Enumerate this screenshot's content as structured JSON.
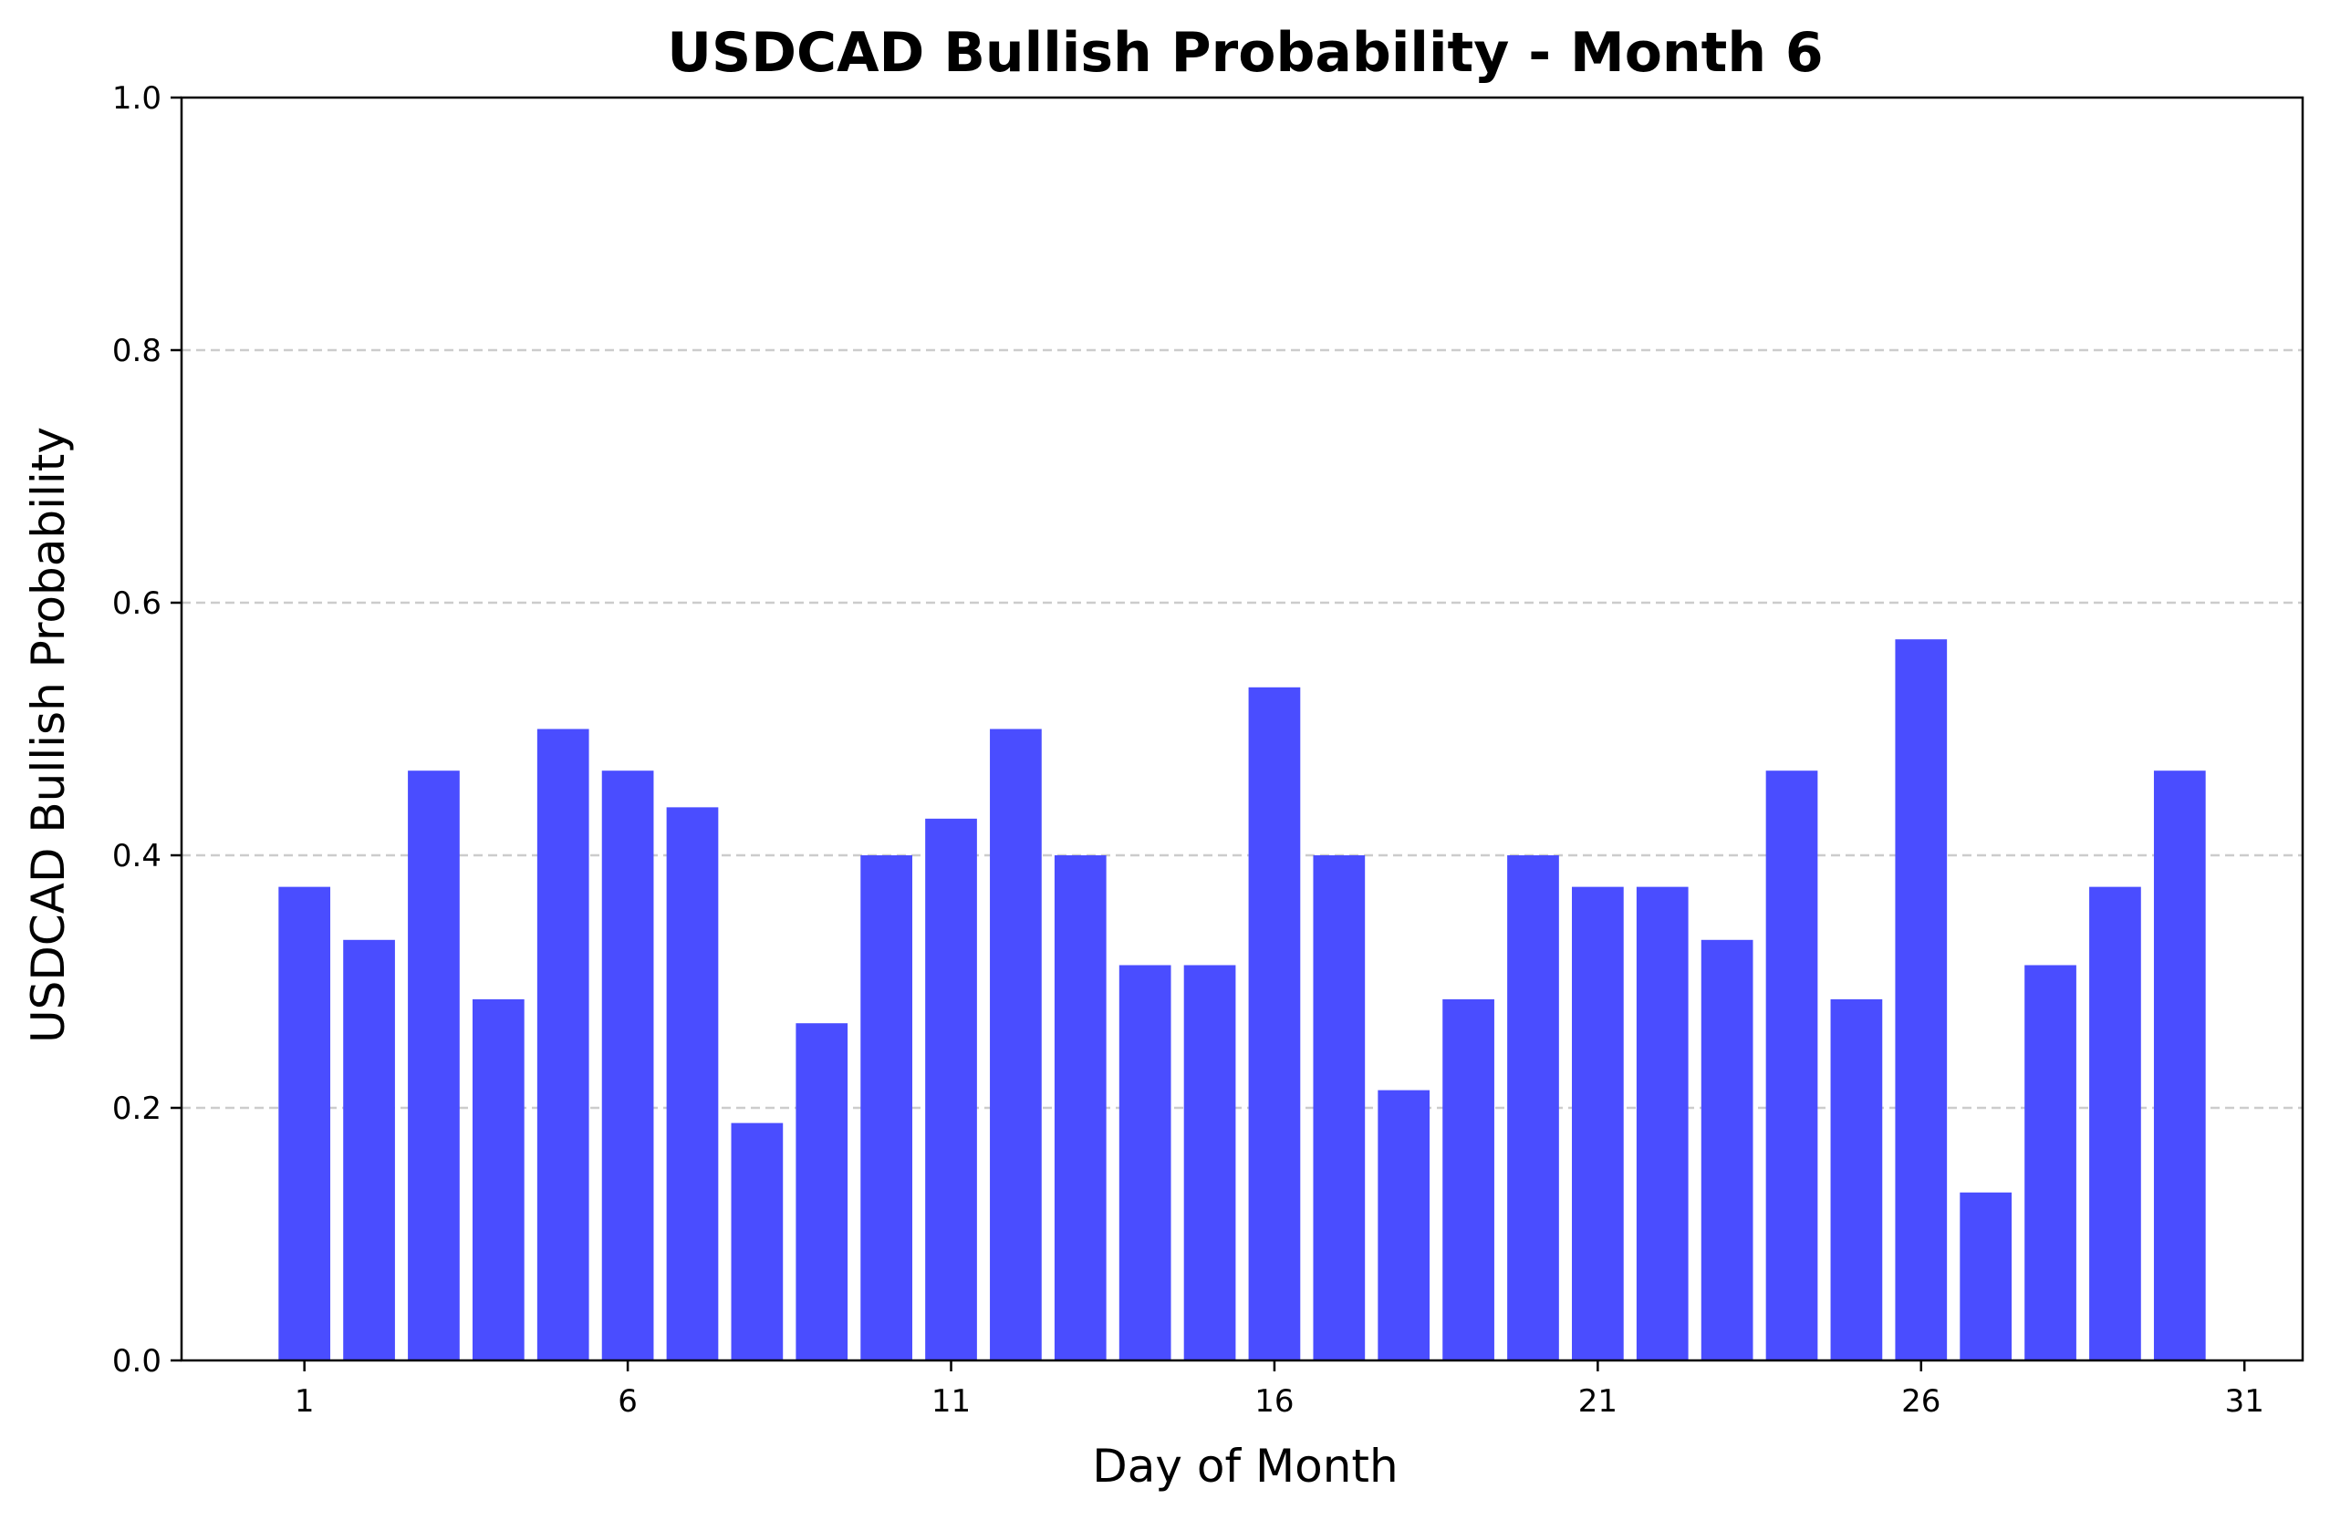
{
  "chart_data": {
    "type": "bar",
    "title": "USDCAD Bullish Probability - Month 6",
    "xlabel": "Day of Month",
    "ylabel": "USDCAD Bullish Probability",
    "categories": [
      1,
      2,
      3,
      4,
      5,
      6,
      7,
      8,
      9,
      10,
      11,
      12,
      13,
      14,
      15,
      16,
      17,
      18,
      19,
      20,
      21,
      22,
      23,
      24,
      25,
      26,
      27,
      28,
      29,
      30
    ],
    "values": [
      0.375,
      0.333,
      0.467,
      0.286,
      0.5,
      0.467,
      0.438,
      0.188,
      0.267,
      0.4,
      0.429,
      0.5,
      0.4,
      0.313,
      0.313,
      0.533,
      0.4,
      0.214,
      0.286,
      0.4,
      0.375,
      0.375,
      0.333,
      0.467,
      0.286,
      0.571,
      0.133,
      0.313,
      0.375,
      0.467
    ],
    "ylim": [
      0,
      1.0
    ],
    "xlim": [
      -0.9,
      31.9
    ],
    "xticks": [
      1,
      6,
      11,
      16,
      21,
      26,
      31
    ],
    "yticks": [
      0.0,
      0.2,
      0.4,
      0.6,
      0.8,
      1.0
    ],
    "ytick_labels": [
      "0.0",
      "0.2",
      "0.4",
      "0.6",
      "0.8",
      "1.0"
    ],
    "grid": "y-dashed",
    "bar_color": "#4a4dff",
    "grid_color": "#cccccc"
  }
}
